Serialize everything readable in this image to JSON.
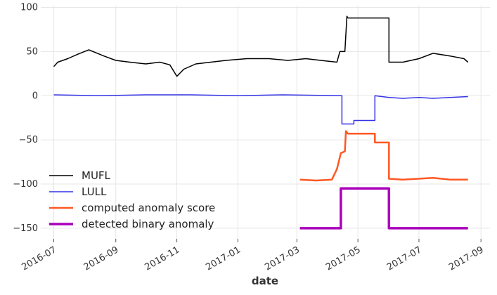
{
  "chart_data": {
    "type": "line",
    "title": "",
    "xlabel": "date",
    "ylabel": "",
    "ylim": [
      -162,
      102
    ],
    "xlim": [
      "2016-06-18",
      "2017-09-10"
    ],
    "x_ticks": [
      "2016-07",
      "2016-09",
      "2016-11",
      "2017-01",
      "2017-03",
      "2017-05",
      "2017-07",
      "2017-09"
    ],
    "x_tick_labels": [
      "2016-07",
      "2016-09",
      "2016-11",
      "2017-01",
      "2017-03",
      "2017-05",
      "2017-07",
      "2017-09"
    ],
    "y_ticks": [
      100,
      50,
      0,
      -50,
      -100,
      -150
    ],
    "y_tick_labels": [
      "100",
      "50",
      "0",
      "−50",
      "−100",
      "−150"
    ],
    "grid": true,
    "legend_position": "lower-left",
    "series": [
      {
        "name": "MUFL",
        "color": "#000000",
        "line_width": 1.5,
        "points": [
          [
            "2016-07-01",
            33
          ],
          [
            "2016-07-05",
            38
          ],
          [
            "2016-07-15",
            42
          ],
          [
            "2016-07-25",
            47
          ],
          [
            "2016-08-05",
            52
          ],
          [
            "2016-08-20",
            45
          ],
          [
            "2016-09-01",
            40
          ],
          [
            "2016-09-15",
            38
          ],
          [
            "2016-10-01",
            36
          ],
          [
            "2016-10-15",
            38
          ],
          [
            "2016-10-25",
            35
          ],
          [
            "2016-11-01",
            22
          ],
          [
            "2016-11-08",
            30
          ],
          [
            "2016-11-20",
            36
          ],
          [
            "2016-12-05",
            38
          ],
          [
            "2016-12-20",
            40
          ],
          [
            "2017-01-10",
            42
          ],
          [
            "2017-02-01",
            42
          ],
          [
            "2017-02-20",
            40
          ],
          [
            "2017-03-10",
            42
          ],
          [
            "2017-03-25",
            40
          ],
          [
            "2017-04-10",
            38
          ],
          [
            "2017-04-13",
            50
          ],
          [
            "2017-04-18",
            50
          ],
          [
            "2017-04-20",
            90
          ],
          [
            "2017-04-21",
            88
          ],
          [
            "2017-06-01",
            88
          ],
          [
            "2017-06-01",
            38
          ],
          [
            "2017-06-15",
            38
          ],
          [
            "2017-07-01",
            42
          ],
          [
            "2017-07-15",
            48
          ],
          [
            "2017-08-01",
            45
          ],
          [
            "2017-08-15",
            42
          ],
          [
            "2017-08-19",
            38
          ]
        ]
      },
      {
        "name": "LULL",
        "color": "#3333e6",
        "line_width": 1.5,
        "points": [
          [
            "2016-07-01",
            1
          ],
          [
            "2016-08-15",
            0
          ],
          [
            "2016-10-01",
            1
          ],
          [
            "2016-11-15",
            1
          ],
          [
            "2017-01-01",
            0
          ],
          [
            "2017-02-15",
            1
          ],
          [
            "2017-04-15",
            0
          ],
          [
            "2017-04-15",
            -32
          ],
          [
            "2017-04-27",
            -32
          ],
          [
            "2017-04-27",
            -28
          ],
          [
            "2017-05-18",
            -28
          ],
          [
            "2017-05-18",
            0
          ],
          [
            "2017-06-01",
            -2
          ],
          [
            "2017-06-15",
            -3
          ],
          [
            "2017-07-01",
            -2
          ],
          [
            "2017-07-15",
            -3
          ],
          [
            "2017-08-19",
            -1
          ]
        ]
      },
      {
        "name": "computed anomaly score",
        "color": "#ff5722",
        "line_width": 2.5,
        "points": [
          [
            "2017-03-04",
            -95
          ],
          [
            "2017-03-20",
            -96
          ],
          [
            "2017-04-05",
            -95
          ],
          [
            "2017-04-10",
            -83
          ],
          [
            "2017-04-14",
            -65
          ],
          [
            "2017-04-18",
            -63
          ],
          [
            "2017-04-19",
            -40
          ],
          [
            "2017-04-21",
            -43
          ],
          [
            "2017-05-18",
            -43
          ],
          [
            "2017-05-18",
            -53
          ],
          [
            "2017-06-01",
            -53
          ],
          [
            "2017-06-01",
            -94
          ],
          [
            "2017-06-15",
            -95
          ],
          [
            "2017-07-15",
            -93
          ],
          [
            "2017-08-01",
            -95
          ],
          [
            "2017-08-19",
            -95
          ]
        ]
      },
      {
        "name": "detected binary anomaly",
        "color": "#aa00bb",
        "line_width": 3.5,
        "points": [
          [
            "2017-03-04",
            -150
          ],
          [
            "2017-04-14",
            -150
          ],
          [
            "2017-04-14",
            -105
          ],
          [
            "2017-06-01",
            -105
          ],
          [
            "2017-06-01",
            -150
          ],
          [
            "2017-08-19",
            -150
          ]
        ]
      }
    ]
  }
}
